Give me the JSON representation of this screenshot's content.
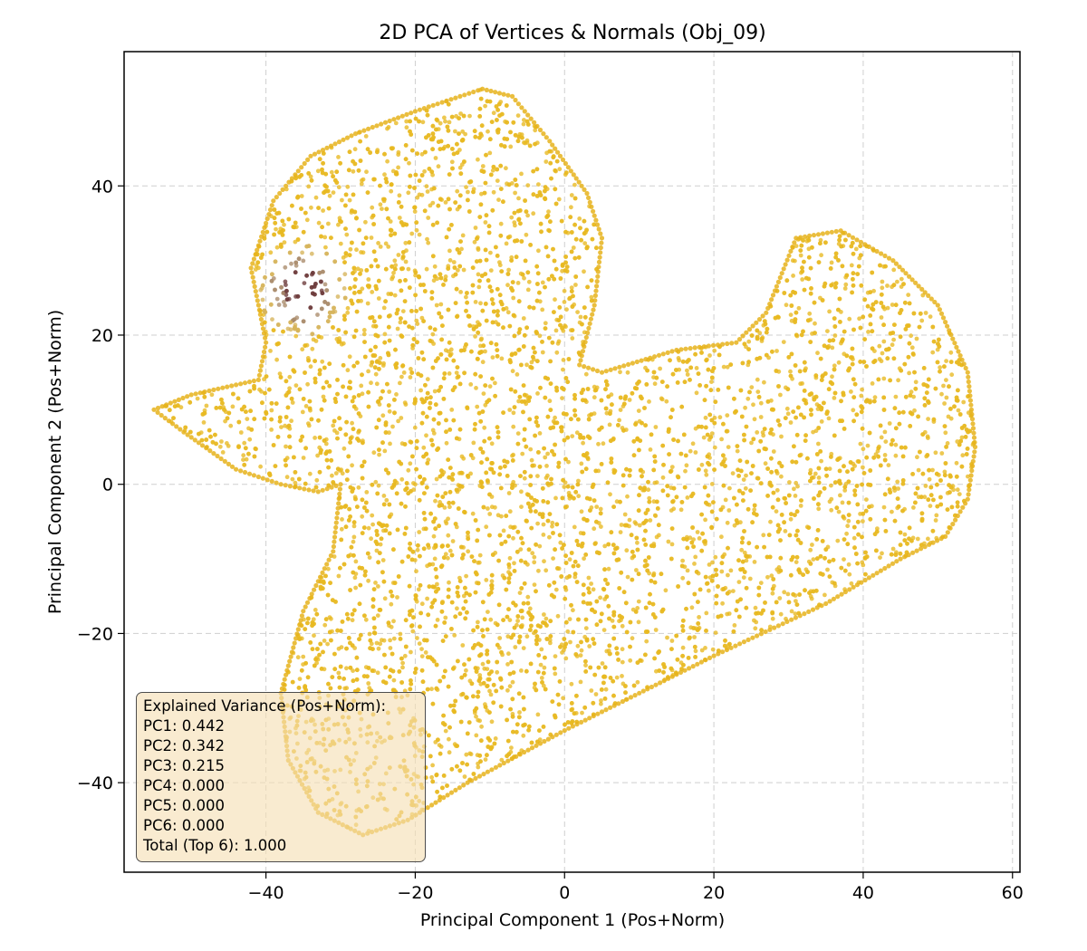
{
  "chart_data": {
    "type": "scatter",
    "title": "2D PCA of Vertices & Normals (Obj_09)",
    "xlabel": "Principal Component 1 (Pos+Norm)",
    "ylabel": "Principal Component 2 (Pos+Norm)",
    "xlim": [
      -59,
      61
    ],
    "ylim": [
      -52,
      58
    ],
    "xticks": [
      -40,
      -20,
      0,
      20,
      40,
      60
    ],
    "yticks": [
      -40,
      -20,
      0,
      20,
      40
    ],
    "xtick_labels": [
      "−40",
      "−20",
      "0",
      "20",
      "40",
      "60"
    ],
    "ytick_labels": [
      "−40",
      "−20",
      "0",
      "20",
      "40"
    ],
    "grid": true,
    "point_color": "#e8b820",
    "dark_spot_color": "#6b3a3a",
    "outline": [
      [
        -50,
        12
      ],
      [
        -41,
        14
      ],
      [
        -40,
        19
      ],
      [
        -42,
        29
      ],
      [
        -39,
        38
      ],
      [
        -34,
        44
      ],
      [
        -28,
        47
      ],
      [
        -20,
        50
      ],
      [
        -11,
        53
      ],
      [
        -7,
        52
      ],
      [
        -2,
        46
      ],
      [
        3,
        39
      ],
      [
        5,
        33
      ],
      [
        4,
        24
      ],
      [
        2,
        16
      ],
      [
        5,
        15
      ],
      [
        15,
        18
      ],
      [
        23,
        19
      ],
      [
        27,
        23
      ],
      [
        31,
        33
      ],
      [
        37,
        34
      ],
      [
        44,
        30
      ],
      [
        50,
        24
      ],
      [
        54,
        15
      ],
      [
        55,
        5
      ],
      [
        54,
        -2
      ],
      [
        51,
        -7
      ],
      [
        45,
        -10
      ],
      [
        35,
        -16
      ],
      [
        20,
        -23
      ],
      [
        0,
        -33
      ],
      [
        -13,
        -40
      ],
      [
        -21,
        -45
      ],
      [
        -27,
        -47
      ],
      [
        -33,
        -44
      ],
      [
        -37,
        -37
      ],
      [
        -38,
        -28
      ],
      [
        -35,
        -17
      ],
      [
        -31,
        -9
      ],
      [
        -30,
        0
      ],
      [
        -33,
        -1
      ],
      [
        -38,
        0
      ],
      [
        -44,
        2
      ],
      [
        -51,
        7
      ],
      [
        -55,
        10
      ]
    ],
    "dark_spot": {
      "x": -35,
      "y": 26,
      "radius": 6
    },
    "point_count": 7000
  },
  "legend": {
    "lines": [
      "Explained Variance (Pos+Norm):",
      "PC1: 0.442",
      "PC2: 0.342",
      "PC3: 0.215",
      "PC4: 0.000",
      "PC5: 0.000",
      "PC6: 0.000",
      "Total (Top 6): 1.000"
    ]
  }
}
